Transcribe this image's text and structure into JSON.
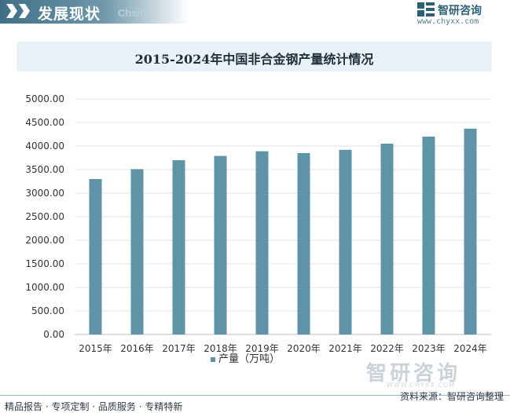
{
  "header": {
    "section_title": "发展现状",
    "section_subtitle": "Chain",
    "brand_name": "智研咨询",
    "brand_url": "www.chyxx.com"
  },
  "chart_data": {
    "type": "bar",
    "title": "2015-2024年中国非合金钢产量统计情况",
    "categories": [
      "2015年",
      "2016年",
      "2017年",
      "2018年",
      "2019年",
      "2020年",
      "2021年",
      "2022年",
      "2023年",
      "2024年"
    ],
    "series": [
      {
        "name": "产量（万吨）",
        "values": [
          3300,
          3510,
          3700,
          3790,
          3890,
          3850,
          3920,
          4050,
          4200,
          4370
        ]
      }
    ],
    "y_ticks": [
      "0.00",
      "500.00",
      "1000.00",
      "1500.00",
      "2000.00",
      "2500.00",
      "3000.00",
      "3500.00",
      "4000.00",
      "4500.00",
      "5000.00"
    ],
    "ylim": [
      0,
      5000
    ],
    "grid": true,
    "legend_position": "bottom",
    "bar_color": "#5f94a6"
  },
  "watermark": {
    "brand": "智研咨询",
    "brand_en": "WWW.CHYXX.COM"
  },
  "footer": {
    "left": "精品报告 · 专项定制 · 品质服务 · 专精特新",
    "source": "资料来源：智研咨询整理"
  }
}
